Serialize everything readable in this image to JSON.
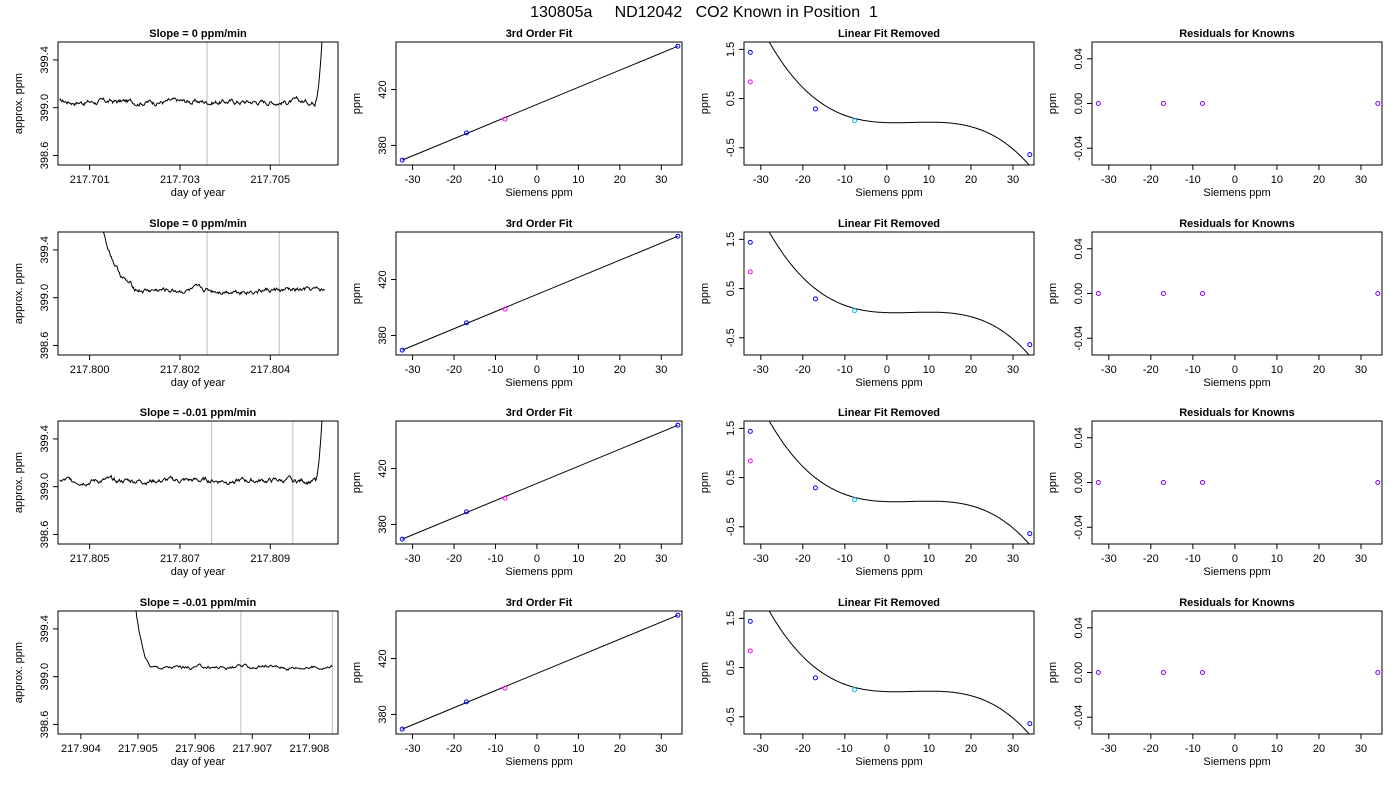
{
  "page_title": "130805a     ND12042   CO2 Known in Position  1",
  "colors": {
    "line": "#000000",
    "vline": "#bebebe",
    "point_blue": "#0000ff",
    "point_magenta": "#ff00ff",
    "point_cyan": "#00bfff"
  },
  "chart_data": [
    {
      "type": "line",
      "panel": "timeseries",
      "title": "Slope =  0  ppm/min",
      "xlabel": "day of year",
      "ylabel": "approx. ppm",
      "xlim": [
        217.7003,
        217.7065
      ],
      "ylim": [
        398.52,
        399.55
      ],
      "xticks": [
        "217.701",
        "217.703",
        "217.705"
      ],
      "yticks": [
        "398.6",
        "399.0",
        "399.4"
      ],
      "baseline": 399.05,
      "noise": 0.03,
      "rise_start": 217.706,
      "rise_end": 217.7062,
      "vlines": [
        217.7036,
        217.7052
      ]
    },
    {
      "type": "scatter",
      "panel": "fit",
      "title": "3rd Order Fit",
      "xlabel": "Siemens ppm",
      "ylabel": "ppm",
      "xlim": [
        -34,
        35
      ],
      "ylim": [
        366,
        454
      ],
      "xticks": [
        "-30",
        "-20",
        "-10",
        "0",
        "10",
        "20",
        "30"
      ],
      "yticks": [
        "380",
        "420"
      ],
      "points": [
        [
          -32.5,
          369.5
        ],
        [
          -17,
          389
        ],
        [
          -7.7,
          398.8
        ],
        [
          34,
          451
        ]
      ]
    },
    {
      "type": "line",
      "panel": "linear-removed",
      "title": "Linear Fit Removed",
      "xlabel": "Siemens ppm",
      "ylabel": "ppm",
      "xlim": [
        -34,
        35
      ],
      "ylim": [
        -0.85,
        1.65
      ],
      "xticks": [
        "-30",
        "-20",
        "-10",
        "0",
        "10",
        "20",
        "30"
      ],
      "yticks": [
        "-0.5",
        "0.5",
        "1.5"
      ],
      "points": [
        [
          -32.5,
          1.44
        ],
        [
          -32.5,
          0.84
        ],
        [
          -17,
          0.29
        ],
        [
          -7.7,
          0.05
        ],
        [
          34,
          -0.64
        ]
      ]
    },
    {
      "type": "scatter",
      "panel": "residuals",
      "title": "Residuals for Knowns",
      "xlabel": "Siemens ppm",
      "ylabel": "ppm",
      "xlim": [
        -34,
        35
      ],
      "ylim": [
        -0.055,
        0.055
      ],
      "xticks": [
        "-30",
        "-20",
        "-10",
        "0",
        "10",
        "20",
        "30"
      ],
      "yticks": [
        "-0.04",
        "0.00",
        "0.04"
      ],
      "points": [
        [
          -32.5,
          0
        ],
        [
          -17,
          0
        ],
        [
          -7.7,
          0
        ],
        [
          34,
          0
        ]
      ]
    },
    {
      "type": "line",
      "panel": "timeseries",
      "title": "Slope =  0  ppm/min",
      "xlabel": "day of year",
      "ylabel": "approx. ppm",
      "xlim": [
        217.7993,
        217.8055
      ],
      "ylim": [
        398.52,
        399.55
      ],
      "xticks": [
        "217.800",
        "217.802",
        "217.804"
      ],
      "yticks": [
        "398.6",
        "399.0",
        "399.4"
      ],
      "baseline": 399.06,
      "noise": 0.03,
      "decay_start": 217.8001,
      "decay_end": 217.8013,
      "vlines": [
        217.8026,
        217.8042
      ],
      "last": 217.8052
    },
    {
      "type": "scatter",
      "panel": "fit",
      "title": "3rd Order Fit",
      "xlabel": "Siemens ppm",
      "ylabel": "ppm",
      "xlim": [
        -34,
        35
      ],
      "ylim": [
        366,
        454
      ],
      "xticks": [
        "-30",
        "-20",
        "-10",
        "0",
        "10",
        "20",
        "30"
      ],
      "yticks": [
        "380",
        "420"
      ],
      "points": [
        [
          -32.5,
          369.5
        ],
        [
          -17,
          389
        ],
        [
          -7.7,
          398.8
        ],
        [
          34,
          451
        ]
      ]
    },
    {
      "type": "line",
      "panel": "linear-removed",
      "title": "Linear Fit Removed",
      "xlabel": "Siemens ppm",
      "ylabel": "ppm",
      "xlim": [
        -34,
        35
      ],
      "ylim": [
        -0.85,
        1.65
      ],
      "xticks": [
        "-30",
        "-20",
        "-10",
        "0",
        "10",
        "20",
        "30"
      ],
      "yticks": [
        "-0.5",
        "0.5",
        "1.5"
      ],
      "points": [
        [
          -32.5,
          1.44
        ],
        [
          -32.5,
          0.84
        ],
        [
          -17,
          0.29
        ],
        [
          -7.7,
          0.05
        ],
        [
          34,
          -0.64
        ]
      ]
    },
    {
      "type": "scatter",
      "panel": "residuals",
      "title": "Residuals for Knowns",
      "xlabel": "Siemens ppm",
      "ylabel": "ppm",
      "xlim": [
        -34,
        35
      ],
      "ylim": [
        -0.055,
        0.055
      ],
      "xticks": [
        "-30",
        "-20",
        "-10",
        "0",
        "10",
        "20",
        "30"
      ],
      "yticks": [
        "-0.04",
        "0.00",
        "0.04"
      ],
      "points": [
        [
          -32.5,
          0
        ],
        [
          -17,
          0
        ],
        [
          -7.7,
          0
        ],
        [
          34,
          0
        ]
      ]
    },
    {
      "type": "line",
      "panel": "timeseries",
      "title": "Slope =  -0.01  ppm/min",
      "xlabel": "day of year",
      "ylabel": "approx. ppm",
      "xlim": [
        217.8043,
        217.8105
      ],
      "ylim": [
        398.52,
        399.55
      ],
      "xticks": [
        "217.805",
        "217.807",
        "217.809"
      ],
      "yticks": [
        "398.6",
        "399.0",
        "399.4"
      ],
      "baseline": 399.05,
      "noise": 0.03,
      "rise_start": 217.81,
      "rise_end": 217.8102,
      "vlines": [
        217.8077,
        217.8095
      ]
    },
    {
      "type": "scatter",
      "panel": "fit",
      "title": "3rd Order Fit",
      "xlabel": "Siemens ppm",
      "ylabel": "ppm",
      "xlim": [
        -34,
        35
      ],
      "ylim": [
        366,
        454
      ],
      "xticks": [
        "-30",
        "-20",
        "-10",
        "0",
        "10",
        "20",
        "30"
      ],
      "yticks": [
        "380",
        "420"
      ],
      "points": [
        [
          -32.5,
          369.5
        ],
        [
          -17,
          389
        ],
        [
          -7.7,
          398.8
        ],
        [
          34,
          451
        ]
      ]
    },
    {
      "type": "line",
      "panel": "linear-removed",
      "title": "Linear Fit Removed",
      "xlabel": "Siemens ppm",
      "ylabel": "ppm",
      "xlim": [
        -34,
        35
      ],
      "ylim": [
        -0.85,
        1.65
      ],
      "xticks": [
        "-30",
        "-20",
        "-10",
        "0",
        "10",
        "20",
        "30"
      ],
      "yticks": [
        "-0.5",
        "0.5",
        "1.5"
      ],
      "points": [
        [
          -32.5,
          1.44
        ],
        [
          -32.5,
          0.84
        ],
        [
          -17,
          0.29
        ],
        [
          -7.7,
          0.05
        ],
        [
          34,
          -0.64
        ]
      ]
    },
    {
      "type": "scatter",
      "panel": "residuals",
      "title": "Residuals for Knowns",
      "xlabel": "Siemens ppm",
      "ylabel": "ppm",
      "xlim": [
        -34,
        35
      ],
      "ylim": [
        -0.055,
        0.055
      ],
      "xticks": [
        "-30",
        "-20",
        "-10",
        "0",
        "10",
        "20",
        "30"
      ],
      "yticks": [
        "-0.04",
        "0.00",
        "0.04"
      ],
      "points": [
        [
          -32.5,
          0
        ],
        [
          -17,
          0
        ],
        [
          -7.7,
          0
        ],
        [
          34,
          0
        ]
      ]
    },
    {
      "type": "line",
      "panel": "timeseries",
      "title": "Slope =  -0.01  ppm/min",
      "xlabel": "day of year",
      "ylabel": "approx. ppm",
      "xlim": [
        217.9036,
        217.9085
      ],
      "ylim": [
        398.52,
        399.55
      ],
      "xticks": [
        "217.904",
        "217.905",
        "217.906",
        "217.907",
        "217.908"
      ],
      "yticks": [
        "398.6",
        "399.0",
        "399.4"
      ],
      "baseline": 399.08,
      "noise": 0.02,
      "decay_start": 217.9049,
      "decay_end": 217.9053,
      "vlines": [
        217.9068,
        217.9084
      ],
      "last": 217.9084
    },
    {
      "type": "scatter",
      "panel": "fit",
      "title": "3rd Order Fit",
      "xlabel": "Siemens ppm",
      "ylabel": "ppm",
      "xlim": [
        -34,
        35
      ],
      "ylim": [
        366,
        454
      ],
      "xticks": [
        "-30",
        "-20",
        "-10",
        "0",
        "10",
        "20",
        "30"
      ],
      "yticks": [
        "380",
        "420"
      ],
      "points": [
        [
          -32.5,
          369.5
        ],
        [
          -17,
          389
        ],
        [
          -7.7,
          398.8
        ],
        [
          34,
          451
        ]
      ]
    },
    {
      "type": "line",
      "panel": "linear-removed",
      "title": "Linear Fit Removed",
      "xlabel": "Siemens ppm",
      "ylabel": "ppm",
      "xlim": [
        -34,
        35
      ],
      "ylim": [
        -0.85,
        1.65
      ],
      "xticks": [
        "-30",
        "-20",
        "-10",
        "0",
        "10",
        "20",
        "30"
      ],
      "yticks": [
        "-0.5",
        "0.5",
        "1.5"
      ],
      "points": [
        [
          -32.5,
          1.44
        ],
        [
          -32.5,
          0.84
        ],
        [
          -17,
          0.29
        ],
        [
          -7.7,
          0.05
        ],
        [
          34,
          -0.64
        ]
      ]
    },
    {
      "type": "scatter",
      "panel": "residuals",
      "title": "Residuals for Knowns",
      "xlabel": "Siemens ppm",
      "ylabel": "ppm",
      "xlim": [
        -34,
        35
      ],
      "ylim": [
        -0.055,
        0.055
      ],
      "xticks": [
        "-30",
        "-20",
        "-10",
        "0",
        "10",
        "20",
        "30"
      ],
      "yticks": [
        "-0.04",
        "0.00",
        "0.04"
      ],
      "points": [
        [
          -32.5,
          0
        ],
        [
          -17,
          0
        ],
        [
          -7.7,
          0
        ],
        [
          34,
          0
        ]
      ]
    }
  ]
}
